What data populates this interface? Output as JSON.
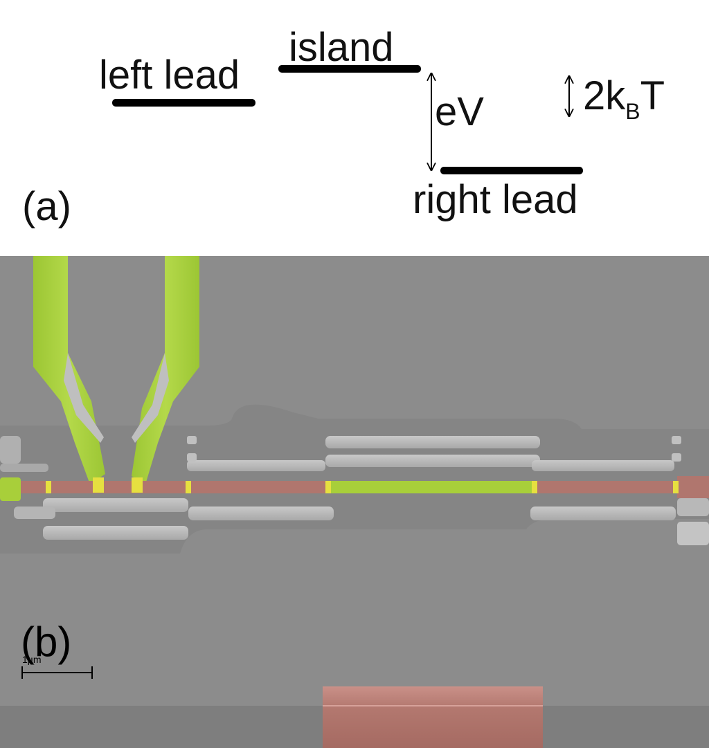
{
  "panel_a": {
    "panel_label": "(a)",
    "left_lead": "left lead",
    "island": "island",
    "right_lead": "right lead",
    "bias_label": "eV",
    "thermal_label_main": "2k",
    "thermal_label_sub": "B",
    "thermal_label_tail": "T"
  },
  "panel_b": {
    "panel_label": "(b)",
    "scale_bar_label": "1µm"
  },
  "colors": {
    "substrate": "#8b8b8b",
    "normal_metal_highlight": "#a8cf3a",
    "superconductor_highlight": "#b0766e",
    "junction_highlight": "#e6e040"
  }
}
